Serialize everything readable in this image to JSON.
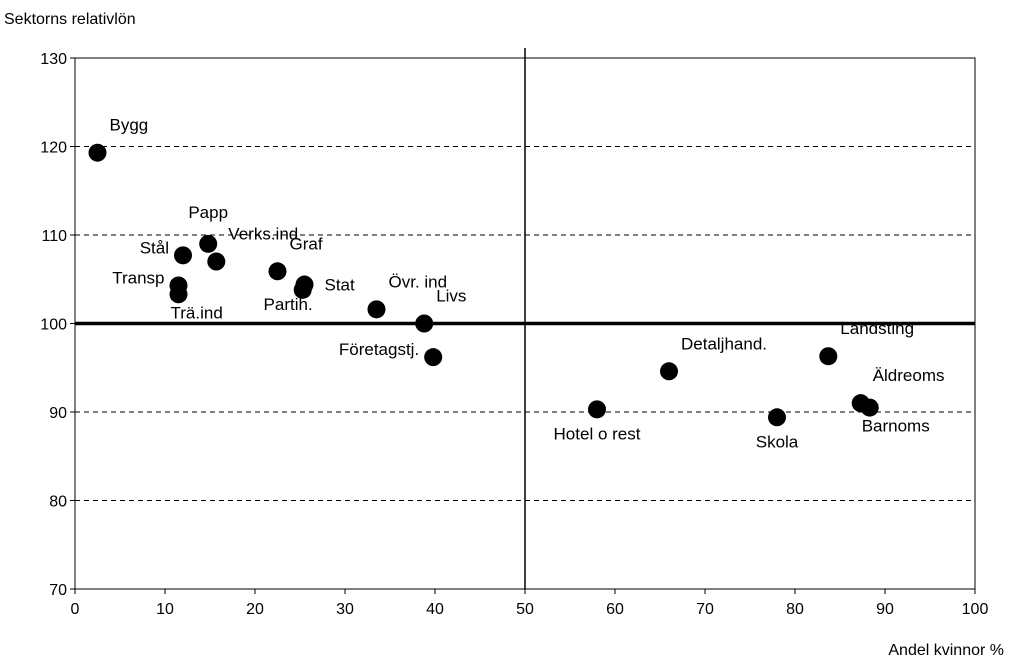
{
  "chart_data": {
    "type": "scatter",
    "ylabel": "Sektorns relativlön",
    "xlabel": "Andel kvinnor %",
    "xlim": [
      0,
      100
    ],
    "ylim": [
      70,
      130
    ],
    "xticks": [
      0,
      10,
      20,
      30,
      40,
      50,
      60,
      70,
      80,
      90,
      100
    ],
    "yticks": [
      70,
      80,
      90,
      100,
      110,
      120,
      130
    ],
    "dashed_gridlines_y": [
      90,
      110,
      120
    ],
    "reference_lines": {
      "horizontal_y": 100,
      "vertical_x": 50
    },
    "marker_color": "#000000",
    "points": [
      {
        "label": "Bygg",
        "x": 2.5,
        "y": 119.3,
        "label_pos": "above-right"
      },
      {
        "label": "Stål",
        "x": 12,
        "y": 107.7,
        "label_pos": "left"
      },
      {
        "label": "Papp",
        "x": 14.8,
        "y": 109,
        "label_pos": "above"
      },
      {
        "label": "Verks.ind",
        "x": 15.7,
        "y": 107,
        "label_pos": "above-right"
      },
      {
        "label": "Transp",
        "x": 11.5,
        "y": 104.3,
        "label_pos": "left"
      },
      {
        "label": "Trä.ind",
        "x": 11.5,
        "y": 103.3,
        "label_pos": "below-right"
      },
      {
        "label": "Graf",
        "x": 22.5,
        "y": 105.9,
        "label_pos": "above-right"
      },
      {
        "label": "Partih.",
        "x": 25.3,
        "y": 103.8,
        "label_pos": "below-left"
      },
      {
        "label": "Stat",
        "x": 25.5,
        "y": 104.4,
        "label_pos": "right"
      },
      {
        "label": "Övr. ind",
        "x": 33.5,
        "y": 101.6,
        "label_pos": "above-right"
      },
      {
        "label": "Livs",
        "x": 38.8,
        "y": 100,
        "label_pos": "above-right"
      },
      {
        "label": "Företagstj.",
        "x": 39.8,
        "y": 96.2,
        "label_pos": "left"
      },
      {
        "label": "Hotel o rest",
        "x": 58,
        "y": 90.3,
        "label_pos": "below"
      },
      {
        "label": "Detaljhand.",
        "x": 66,
        "y": 94.6,
        "label_pos": "above-right"
      },
      {
        "label": "Skola",
        "x": 78,
        "y": 89.4,
        "label_pos": "below"
      },
      {
        "label": "Landsting",
        "x": 83.7,
        "y": 96.3,
        "label_pos": "above-right"
      },
      {
        "label": "Äldreoms",
        "x": 87.3,
        "y": 91,
        "label_pos": "above-right"
      },
      {
        "label": "Barnoms",
        "x": 88.3,
        "y": 90.5,
        "label_pos": "below-right"
      }
    ]
  }
}
